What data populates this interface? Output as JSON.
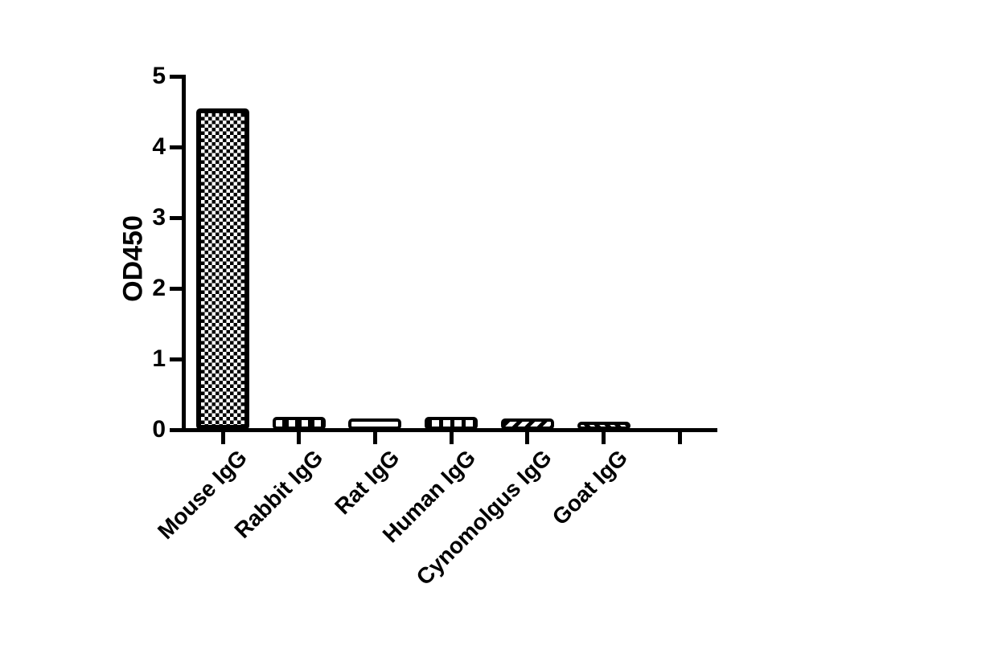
{
  "page": {
    "background": "#ffffff"
  },
  "chart_data": {
    "type": "bar",
    "title": "",
    "xlabel": "",
    "ylabel": "OD450",
    "ylim": [
      0,
      5
    ],
    "yticks": [
      "0",
      "1",
      "2",
      "3",
      "4",
      "5"
    ],
    "categories": [
      "Mouse IgG",
      "Rabbit IgG",
      "Rat IgG",
      "Human IgG",
      "Cynomolgus IgG",
      "Goat IgG"
    ],
    "values": [
      4.55,
      0.18,
      0.16,
      0.18,
      0.16,
      0.11
    ],
    "patterns": [
      "checker-fine",
      "checker-coarse",
      "horizontal-lines",
      "vertical-lines",
      "diagonal-forward",
      "diagonal-backward"
    ],
    "extra_empty_tick": true,
    "axis_color": "#000000",
    "bar_outline_color": "#000000",
    "bar_fill_background": "#ffffff",
    "pattern_color": "#000000",
    "grid": false,
    "legend": false
  }
}
